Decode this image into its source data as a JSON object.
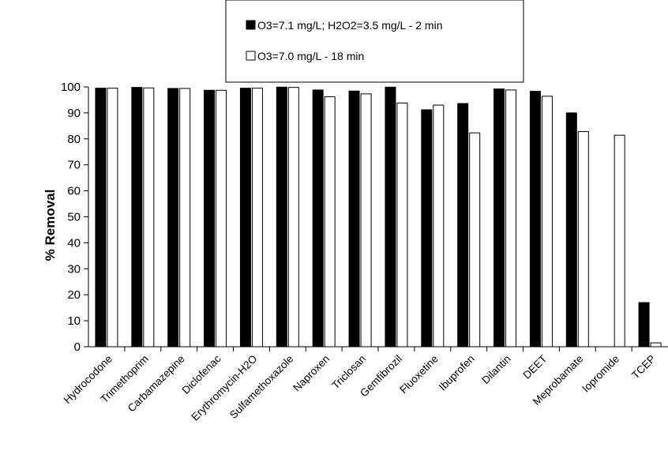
{
  "chart_data": {
    "type": "bar",
    "title": "",
    "xlabel": "",
    "ylabel": "% Removal",
    "ylim": [
      0,
      100
    ],
    "yticks": [
      "0",
      "10",
      "20",
      "30",
      "40",
      "50",
      "60",
      "70",
      "80",
      "90",
      "100"
    ],
    "grid": false,
    "legend_position": "top-center",
    "categories": [
      "Hydrocodone",
      "Trimethoprim",
      "Carbamazepine",
      "Diclofenac",
      "Erythromycin-H2O",
      "Sulfamethoxazole",
      "Naproxen",
      "Triclosan",
      "Gemfibrozil",
      "Fluoxetine",
      "Ibuprofen",
      "Dilantin",
      "DEET",
      "Meprobamate",
      "Iopromide",
      "TCEP"
    ],
    "series": [
      {
        "name": "O3=7.1 mg/L; H2O2=3.5 mg/L - 2 min",
        "color": "#000000",
        "values": [
          99.5,
          99.8,
          99.4,
          98.7,
          99.5,
          99.9,
          98.8,
          98.4,
          99.9,
          91.2,
          93.6,
          99.2,
          98.3,
          90.0,
          null,
          17.0
        ]
      },
      {
        "name": "O3=7.0 mg/L - 18 min",
        "color": "#ffffff",
        "values": [
          99.5,
          99.6,
          99.4,
          98.7,
          99.5,
          99.8,
          96.2,
          97.3,
          93.8,
          93.0,
          82.3,
          98.8,
          96.4,
          82.8,
          81.4,
          1.5
        ]
      }
    ]
  }
}
